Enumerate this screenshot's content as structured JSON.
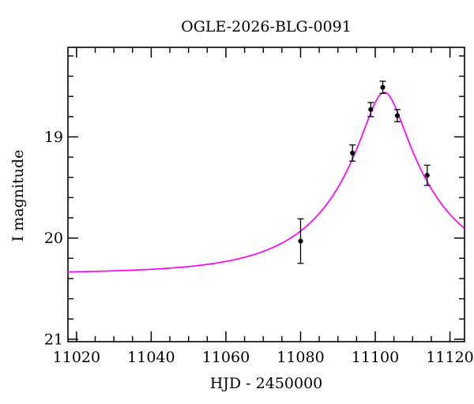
{
  "figure": {
    "title": "OGLE-2026-BLG-0091",
    "xlabel": "HJD - 2450000",
    "ylabel": "I magnitude"
  },
  "chart_data": {
    "type": "scatter",
    "subtype": "microlensing-light-curve with Paczynski model fit",
    "title": "OGLE-2026-BLG-0091",
    "xlabel": "HJD - 2450000",
    "ylabel": "I magnitude",
    "x_axis": {
      "min": 11017.7,
      "max": 11123.9,
      "major_ticks": [
        11020,
        11040,
        11060,
        11080,
        11100,
        11120
      ],
      "tick_labels": [
        "11020",
        "11040",
        "11060",
        "11080",
        "11100",
        "11120"
      ],
      "minor_step": 5
    },
    "y_axis": {
      "min": 18.115,
      "max": 21.024,
      "inverted": true,
      "major_ticks": [
        19,
        20,
        21
      ],
      "tick_labels": [
        "19",
        "20",
        "21"
      ],
      "minor_step": 0.2
    },
    "points": [
      {
        "t": 11080.0,
        "mag": 20.03,
        "err": 0.22
      },
      {
        "t": 11093.9,
        "mag": 19.16,
        "err": 0.08
      },
      {
        "t": 11098.8,
        "mag": 18.73,
        "err": 0.07
      },
      {
        "t": 11102.0,
        "mag": 18.51,
        "err": 0.06
      },
      {
        "t": 11105.9,
        "mag": 18.79,
        "err": 0.06
      },
      {
        "t": 11113.9,
        "mag": 19.38,
        "err": 0.1
      }
    ],
    "model": {
      "type": "paczynski",
      "baseline_mag": 20.35,
      "t0": 11102.4,
      "tE": 27.0,
      "u0": 0.195,
      "peak_mag": 18.56,
      "color": "#ff00ff"
    },
    "colors": {
      "axis": "#000000",
      "points": "#000000",
      "background": "#ffffff"
    },
    "legend": null,
    "grid": false
  }
}
